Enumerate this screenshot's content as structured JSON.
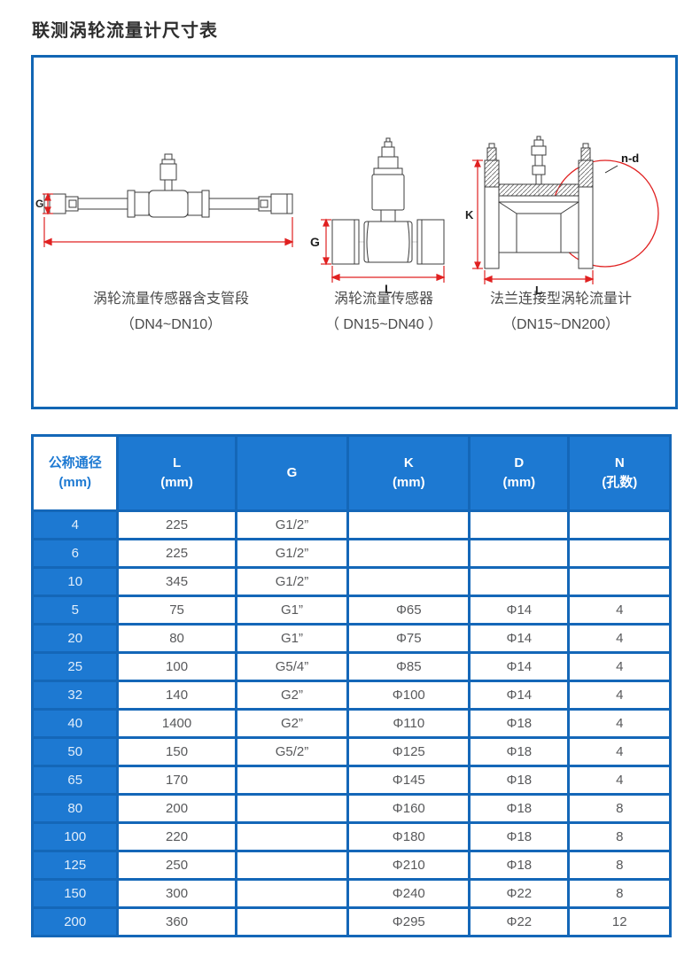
{
  "page": {
    "title": "联测涡轮流量计尺寸表"
  },
  "colors": {
    "accent_blue": "#1d79d2",
    "grid_blue": "#1467b8",
    "box_border_blue": "#1266b4",
    "dimension_red": "#e02020",
    "body_text": "#58595b"
  },
  "diagrams": {
    "labels": {
      "g_small": "G",
      "g_mid": "G",
      "l_mid": "L",
      "k": "K",
      "l_flange": "L",
      "nd": "n-d"
    },
    "captions": [
      {
        "line1": "涡轮流量传感器含支管段",
        "line2": "（DN4~DN10）"
      },
      {
        "line1": "涡轮流量传感器",
        "line2": "（ DN15~DN40 ）"
      },
      {
        "line1": "法兰连接型涡轮流量计",
        "line2": "（DN15~DN200）"
      }
    ]
  },
  "table": {
    "headers": [
      {
        "line1": "公称通径",
        "line2": "(mm)"
      },
      {
        "line1": "L",
        "line2": "(mm)"
      },
      {
        "line1": "G",
        "line2": ""
      },
      {
        "line1": "K",
        "line2": "(mm)"
      },
      {
        "line1": "D",
        "line2": "(mm)"
      },
      {
        "line1": "N",
        "line2": "(孔数)"
      }
    ],
    "rows": [
      [
        "4",
        "225",
        "G1/2”",
        "",
        "",
        ""
      ],
      [
        "6",
        "225",
        "G1/2”",
        "",
        "",
        ""
      ],
      [
        "10",
        "345",
        "G1/2”",
        "",
        "",
        ""
      ],
      [
        "5",
        "75",
        "G1”",
        "Φ65",
        "Φ14",
        "4"
      ],
      [
        "20",
        "80",
        "G1”",
        "Φ75",
        "Φ14",
        "4"
      ],
      [
        "25",
        "100",
        "G5/4”",
        "Φ85",
        "Φ14",
        "4"
      ],
      [
        "32",
        "140",
        "G2”",
        "Φ100",
        "Φ14",
        "4"
      ],
      [
        "40",
        "1400",
        "G2”",
        "Φ110",
        "Φ18",
        "4"
      ],
      [
        "50",
        "150",
        "G5/2”",
        "Φ125",
        "Φ18",
        "4"
      ],
      [
        "65",
        "170",
        "",
        "Φ145",
        "Φ18",
        "4"
      ],
      [
        "80",
        "200",
        "",
        "Φ160",
        "Φ18",
        "8"
      ],
      [
        "100",
        "220",
        "",
        "Φ180",
        "Φ18",
        "8"
      ],
      [
        "125",
        "250",
        "",
        "Φ210",
        "Φ18",
        "8"
      ],
      [
        "150",
        "300",
        "",
        "Φ240",
        "Φ22",
        "8"
      ],
      [
        "200",
        "360",
        "",
        "Φ295",
        "Φ22",
        "12"
      ]
    ]
  }
}
